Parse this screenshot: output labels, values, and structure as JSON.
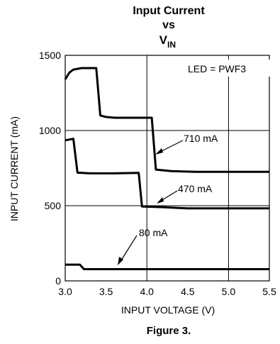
{
  "chart_data": {
    "type": "line",
    "title_line1": "Input Current",
    "title_line2": "vs",
    "title_line3_main": "V",
    "title_line3_sub": "IN",
    "xlabel": "INPUT VOLTAGE (V)",
    "ylabel": "INPUT CURRENT (mA)",
    "xlim": [
      3.0,
      5.5
    ],
    "ylim": [
      0,
      1500
    ],
    "x_ticks": [
      "3.0",
      "3.5",
      "4.0",
      "4.5",
      "5.0",
      "5.5"
    ],
    "y_ticks": [
      "0",
      "500",
      "1000",
      "1500"
    ],
    "grid": true,
    "legend_box": "LED = PWF3",
    "series": [
      {
        "name": "710 mA",
        "points": [
          [
            3.0,
            1340
          ],
          [
            3.05,
            1385
          ],
          [
            3.1,
            1405
          ],
          [
            3.2,
            1415
          ],
          [
            3.38,
            1415
          ],
          [
            3.43,
            1100
          ],
          [
            3.5,
            1090
          ],
          [
            3.6,
            1085
          ],
          [
            3.8,
            1085
          ],
          [
            4.06,
            1085
          ],
          [
            4.11,
            740
          ],
          [
            4.3,
            730
          ],
          [
            4.6,
            725
          ],
          [
            5.0,
            725
          ],
          [
            5.5,
            725
          ]
        ]
      },
      {
        "name": "470 mA",
        "points": [
          [
            3.0,
            935
          ],
          [
            3.1,
            945
          ],
          [
            3.15,
            720
          ],
          [
            3.3,
            715
          ],
          [
            3.6,
            715
          ],
          [
            3.9,
            718
          ],
          [
            3.94,
            495
          ],
          [
            4.2,
            490
          ],
          [
            4.5,
            482
          ],
          [
            5.0,
            482
          ],
          [
            5.5,
            482
          ]
        ]
      },
      {
        "name": "80 mA",
        "points": [
          [
            3.0,
            108
          ],
          [
            3.18,
            108
          ],
          [
            3.23,
            78
          ],
          [
            3.5,
            78
          ],
          [
            4.0,
            78
          ],
          [
            4.5,
            78
          ],
          [
            5.0,
            78
          ],
          [
            5.5,
            78
          ]
        ]
      }
    ],
    "annotations": [
      "710 mA",
      "470 mA",
      "80 mA"
    ]
  },
  "caption": "Figure 3."
}
